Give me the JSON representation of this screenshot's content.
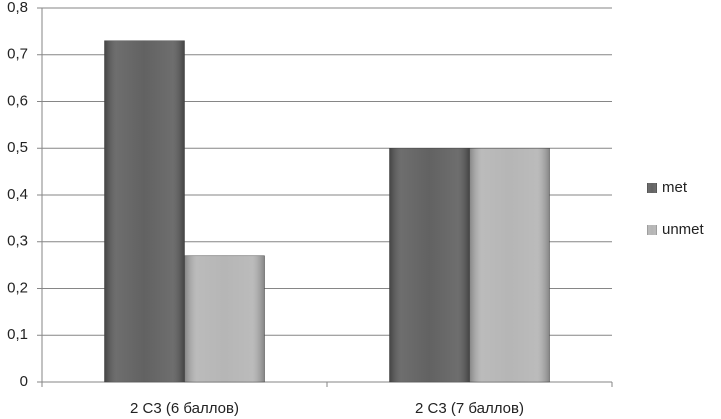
{
  "chart_data": {
    "type": "bar",
    "categories": [
      "2 C3 (6 баллов)",
      "2 C3 (7 баллов)"
    ],
    "series": [
      {
        "name": "met",
        "color": "#5a5a5a",
        "values": [
          0.73,
          0.5
        ]
      },
      {
        "name": "unmet",
        "color": "#b2b2b2",
        "values": [
          0.27,
          0.5
        ]
      }
    ],
    "ylim": [
      0,
      0.8
    ],
    "yticks": [
      0,
      {
        "value": 0.1,
        "label": "0,1"
      },
      {
        "value": 0.2,
        "label": "0,2"
      },
      {
        "value": 0.3,
        "label": "0,3"
      },
      {
        "value": 0.4,
        "label": "0,4"
      },
      {
        "value": 0.5,
        "label": "0,5"
      },
      {
        "value": 0.6,
        "label": "0,6"
      },
      {
        "value": 0.7,
        "label": "0,7"
      },
      {
        "value": 0.8,
        "label": "0,8"
      }
    ],
    "grid": true,
    "legend": "right"
  }
}
